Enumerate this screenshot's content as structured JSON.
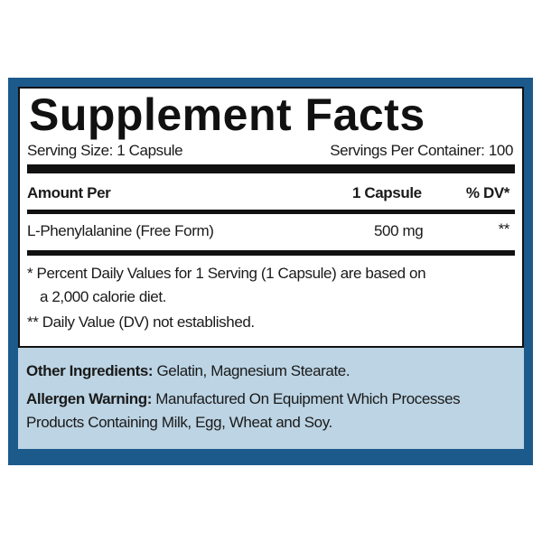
{
  "label": {
    "title": "Supplement Facts",
    "serving_size": "Serving Size: 1 Capsule",
    "servings_per_container": "Servings Per Container: 100",
    "header": {
      "amount_per": "Amount Per",
      "serving": "1 Capsule",
      "dv": "% DV*"
    },
    "rows": [
      {
        "name": "L-Phenylalanine (Free Form)",
        "amount": "500 mg",
        "dv": "**"
      }
    ],
    "footnotes": [
      "* Percent Daily Values for 1 Serving (1 Capsule) are based on",
      "a 2,000 calorie diet.",
      "** Daily Value (DV) not established."
    ]
  },
  "other_ingredients": {
    "label": "Other Ingredients:",
    "value": " Gelatin, Magnesium Stearate."
  },
  "allergen": {
    "label": "Allergen Warning:",
    "line1": " Manufactured On Equipment Which Processes",
    "line2": "Products Containing Milk, Egg, Wheat and Soy."
  },
  "colors": {
    "frame": "#1d5a8c",
    "lower_panel": "#bcd4e4"
  }
}
